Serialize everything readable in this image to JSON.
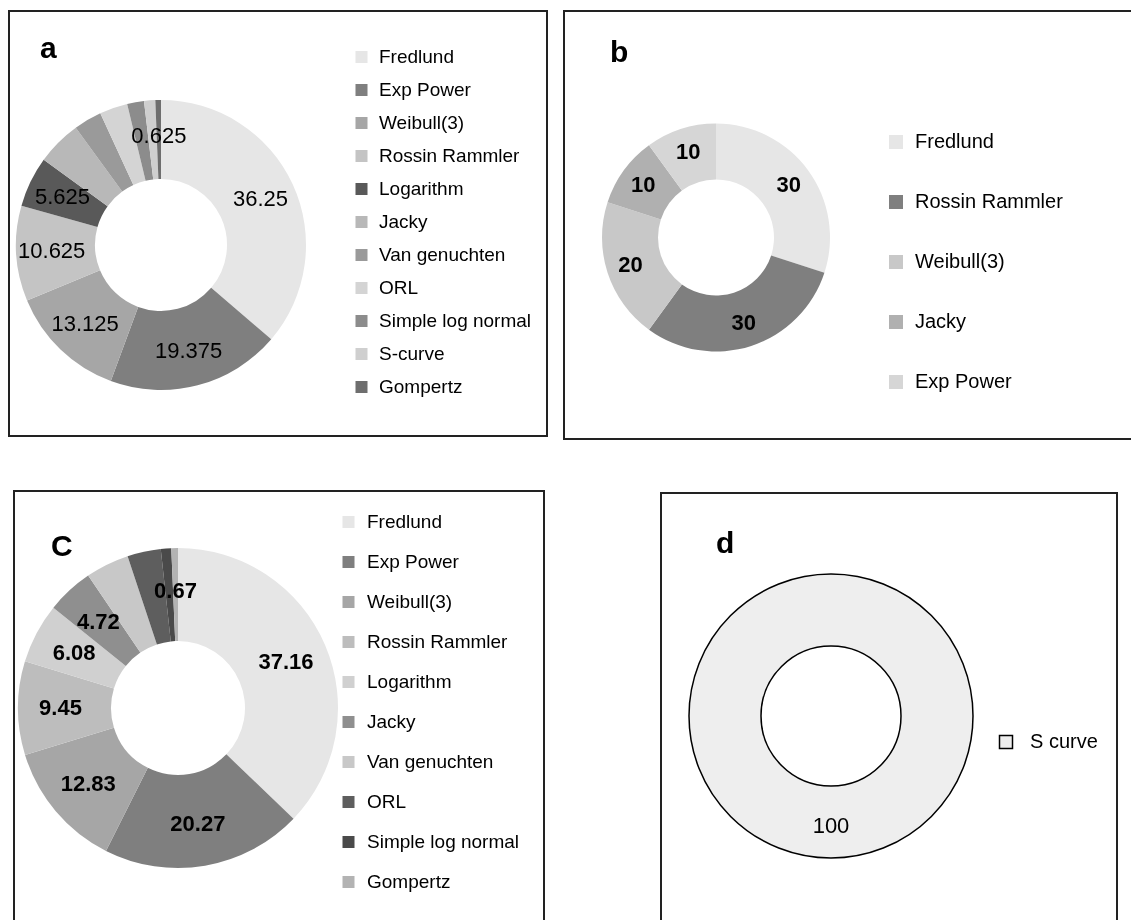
{
  "chart_data": [
    {
      "type": "donut",
      "title": "a",
      "categories": [
        "Fredlund",
        "Exp Power",
        "Weibull(3)",
        "Rossin Rammler",
        "Logarithm",
        "Jacky",
        "Van genuchten",
        "ORL",
        "Simple log normal",
        "S-curve",
        "Gompertz"
      ],
      "values": [
        36.25,
        19.375,
        13.125,
        10.625,
        5.625,
        5,
        3.125,
        3.125,
        1.875,
        1.25,
        0.625
      ],
      "colors": [
        "#e6e6e6",
        "#7f7f7f",
        "#a6a6a6",
        "#c4c4c4",
        "#595959",
        "#b8b8b8",
        "#9a9a9a",
        "#d4d4d4",
        "#8c8c8c",
        "#cfcfcf",
        "#6e6e6e"
      ],
      "value_labels": [
        "36.25",
        "19.375",
        "13.125",
        "10.625",
        "5.625",
        null,
        null,
        null,
        null,
        null,
        "0.625"
      ],
      "legend": "right"
    },
    {
      "type": "donut",
      "title": "b",
      "categories": [
        "Fredlund",
        "Rossin Rammler",
        "Weibull(3)",
        "Jacky",
        "Exp Power"
      ],
      "values": [
        30,
        30,
        20,
        10,
        10
      ],
      "colors": [
        "#e6e6e6",
        "#7f7f7f",
        "#c8c8c8",
        "#b0b0b0",
        "#d6d6d6"
      ],
      "data_labels": true,
      "legend": "right"
    },
    {
      "type": "donut",
      "title": "C",
      "categories": [
        "Fredlund",
        "Exp Power",
        "Weibull(3)",
        "Rossin Rammler",
        "Logarithm",
        "Jacky",
        "Van genuchten",
        "ORL",
        "Simple log normal",
        "Gompertz"
      ],
      "values": [
        37.16,
        20.27,
        12.83,
        9.45,
        6.08,
        4.72,
        4.39,
        3.38,
        1.05,
        0.67
      ],
      "colors": [
        "#e6e6e6",
        "#7f7f7f",
        "#a6a6a6",
        "#bdbdbd",
        "#d0d0d0",
        "#8f8f8f",
        "#c8c8c8",
        "#5e5e5e",
        "#4a4a4a",
        "#b3b3b3"
      ],
      "value_labels": [
        "37.16",
        "20.27",
        "12.83",
        "9.45",
        "6.08",
        "4.72",
        null,
        null,
        null,
        "0.67"
      ],
      "legend": "right"
    },
    {
      "type": "donut",
      "title": "d",
      "categories": [
        "S curve"
      ],
      "values": [
        100
      ],
      "colors": [
        "#eeeeee"
      ],
      "data_labels": true,
      "legend": "right"
    }
  ]
}
